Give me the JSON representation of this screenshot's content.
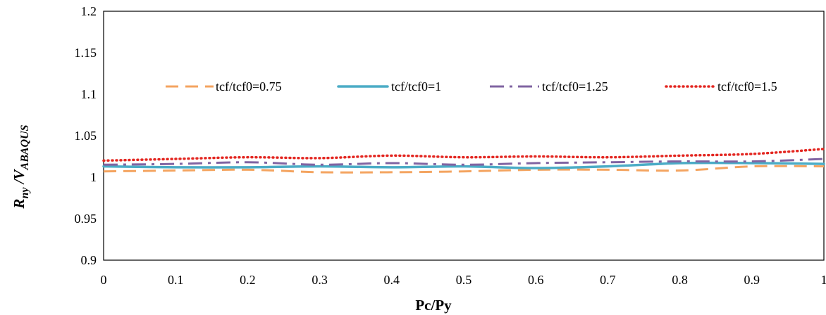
{
  "chart_data": {
    "type": "line",
    "xlabel": "Pc/Py",
    "ylabel": {
      "main": "R",
      "main_sub": "ny",
      "sep": " /V",
      "sep_sub": "ABAQUS"
    },
    "xlim": [
      0,
      1
    ],
    "ylim": [
      0.9,
      1.2
    ],
    "xticks": [
      "0",
      "0.1",
      "0.2",
      "0.3",
      "0.4",
      "0.5",
      "0.6",
      "0.7",
      "0.8",
      "0.9",
      "1"
    ],
    "yticks": [
      "0.9",
      "0.95",
      "1",
      "1.05",
      "1.1",
      "1.15",
      "1.2"
    ],
    "grid": false,
    "legend_position": "upper-middle inside plot",
    "x": [
      0,
      0.1,
      0.2,
      0.3,
      0.4,
      0.5,
      0.6,
      0.7,
      0.8,
      0.9,
      1
    ],
    "series": [
      {
        "name": "tcf/tcf0=0.75",
        "style": "dashed",
        "color": "#F4A460",
        "values": [
          1.007,
          1.008,
          1.009,
          1.006,
          1.006,
          1.007,
          1.009,
          1.009,
          1.008,
          1.013,
          1.013
        ]
      },
      {
        "name": "tcf/tcf0=1",
        "style": "solid",
        "color": "#4BACC6",
        "values": [
          1.013,
          1.012,
          1.012,
          1.013,
          1.012,
          1.013,
          1.011,
          1.013,
          1.017,
          1.017,
          1.016
        ]
      },
      {
        "name": "tcf/tcf0=1.25",
        "style": "dash-dot",
        "color": "#8064A2",
        "values": [
          1.015,
          1.016,
          1.018,
          1.015,
          1.017,
          1.015,
          1.017,
          1.018,
          1.019,
          1.019,
          1.022
        ]
      },
      {
        "name": "tcf/tcf0=1.5",
        "style": "dotted",
        "color": "#E32620",
        "values": [
          1.02,
          1.022,
          1.024,
          1.023,
          1.026,
          1.024,
          1.025,
          1.024,
          1.026,
          1.028,
          1.034
        ]
      }
    ]
  }
}
